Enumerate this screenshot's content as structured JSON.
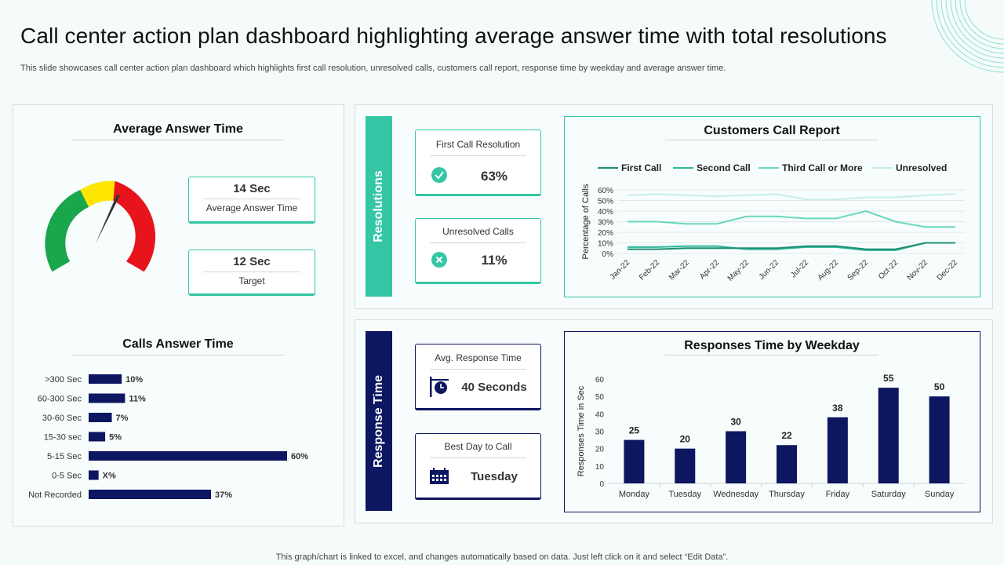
{
  "header": {
    "title": "Call center action plan dashboard highlighting average answer time with total resolutions",
    "subtitle": "This slide showcases call center action plan dashboard which highlights first call resolution, unresolved calls, customers call report, response time by weekday and average answer time."
  },
  "footer": "This graph/chart is linked to excel,  and changes automatically based on data. Just left click on it and select “Edit Data”.",
  "colors": {
    "teal": "#35c6a5",
    "navy": "#0d1660",
    "green": "#1aa64b",
    "yellow": "#ffe600",
    "red": "#e8141c"
  },
  "avg_answer": {
    "title": "Average Answer Time",
    "gauge": {
      "segments": [
        "green",
        "yellow",
        "red"
      ]
    },
    "kpi1": {
      "value": "14 Sec",
      "label": "Average Answer Time"
    },
    "kpi2": {
      "value": "12 Sec",
      "label": "Target"
    }
  },
  "calls_answer": {
    "title": "Calls Answer Time",
    "items": [
      {
        "label": ">300 Sec",
        "value": 10,
        "text": "10%"
      },
      {
        "label": "60-300 Sec",
        "value": 11,
        "text": "11%"
      },
      {
        "label": "30-60 Sec",
        "value": 7,
        "text": "7%"
      },
      {
        "label": "15-30 sec",
        "value": 5,
        "text": "5%"
      },
      {
        "label": "5-15 Sec",
        "value": 60,
        "text": "60%"
      },
      {
        "label": "0-5 Sec",
        "value": 3,
        "text": "X%"
      },
      {
        "label": "Not Recorded",
        "value": 37,
        "text": "37%"
      }
    ]
  },
  "resolutions": {
    "label": "Resolutions",
    "first": {
      "label": "First Call Resolution",
      "value": "63%",
      "icon": "check-circle-icon"
    },
    "unresolved": {
      "label": "Unresolved Calls",
      "value": "11%",
      "icon": "x-circle-icon"
    }
  },
  "response": {
    "label": "Response Time",
    "avg": {
      "label": "Avg. Response Time",
      "value": "40 Seconds",
      "icon": "clock-sign-icon"
    },
    "best": {
      "label": "Best Day to Call",
      "value": "Tuesday",
      "icon": "calendar-icon"
    }
  },
  "chart_data": [
    {
      "type": "line",
      "title": "Customers Call Report",
      "ylabel": "Percentage of Calls",
      "x": [
        "Jan-22",
        "Feb-22",
        "Mar-22",
        "Apr-22",
        "May-22",
        "Jun-22",
        "Jul-22",
        "Aug-22",
        "Sep-22",
        "Oct-22",
        "Nov-22",
        "Dec-22"
      ],
      "yticks": [
        "0%",
        "10%",
        "20%",
        "30%",
        "40%",
        "50%",
        "60%"
      ],
      "ylim": [
        0,
        60
      ],
      "legend": "top",
      "series": [
        {
          "name": "First Call",
          "color": "#1e8f74",
          "values": [
            4,
            4,
            5,
            5,
            5,
            5,
            7,
            7,
            4,
            4,
            10,
            10
          ]
        },
        {
          "name": "Second Call",
          "color": "#2bb898",
          "values": [
            6,
            6,
            7,
            7,
            4,
            4,
            6,
            6,
            3,
            3,
            10,
            10
          ]
        },
        {
          "name": "Third Call or More",
          "color": "#6ad7bf",
          "values": [
            30,
            30,
            28,
            28,
            35,
            35,
            33,
            33,
            40,
            30,
            25,
            25
          ]
        },
        {
          "name": "Unresolved",
          "color": "#c8eee6",
          "values": [
            55,
            56,
            55,
            54,
            55,
            56,
            51,
            51,
            53,
            53,
            55,
            56
          ]
        }
      ]
    },
    {
      "type": "bar",
      "title": "Responses Time by Weekday",
      "ylabel": "Responses Time in Sec",
      "categories": [
        "Monday",
        "Tuesday",
        "Wednesday",
        "Thursday",
        "Friday",
        "Saturday",
        "Sunday"
      ],
      "values": [
        25,
        20,
        30,
        22,
        38,
        55,
        50
      ],
      "ylim": [
        0,
        60
      ],
      "yticks": [
        "0",
        "10",
        "20",
        "30",
        "40",
        "50",
        "60"
      ]
    }
  ]
}
